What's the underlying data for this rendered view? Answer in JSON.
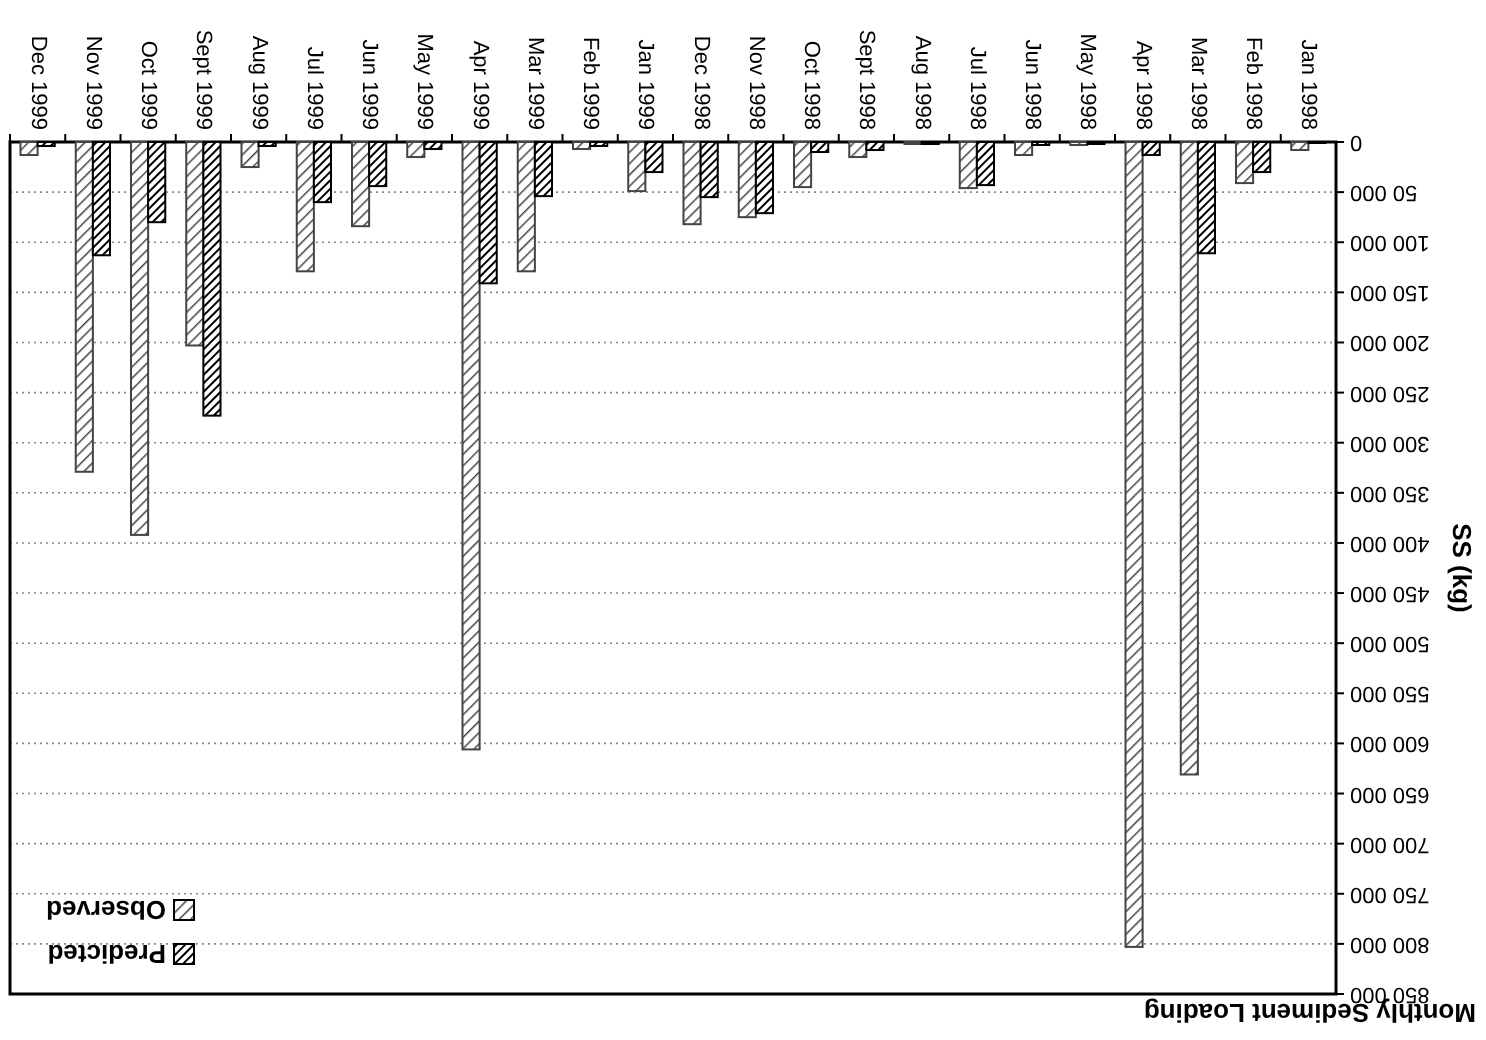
{
  "chart_data": {
    "type": "bar",
    "title": "Monthly Sediment Loading",
    "ylabel": "SS (kg)",
    "categories": [
      "Dec 1999",
      "Nov 1999",
      "Oct 1999",
      "Sept 1999",
      "Aug 1999",
      "Jul 1999",
      "Jun 1999",
      "May 1999",
      "Apr 1999",
      "Mar 1999",
      "Feb 1999",
      "Jan 1999",
      "Dec 1998",
      "Nov 1998",
      "Oct 1998",
      "Sept 1998",
      "Aug 1998",
      "Jul 1998",
      "Jun 1998",
      "May 1998",
      "Apr 1998",
      "Mar 1998",
      "Feb 1998",
      "Jan 1998"
    ],
    "series": [
      {
        "name": "Observed",
        "color": "#444444",
        "values": [
          13000,
          329000,
          392000,
          203000,
          25000,
          129000,
          84000,
          15000,
          606000,
          129000,
          7000,
          49000,
          82000,
          75000,
          45000,
          15000,
          2000,
          46000,
          13000,
          3000,
          803000,
          631000,
          41000,
          8000
        ]
      },
      {
        "name": "Predicted",
        "color": "#000000",
        "values": [
          4000,
          113000,
          80000,
          273000,
          4000,
          60000,
          44000,
          7000,
          141000,
          54000,
          4000,
          30000,
          55000,
          71000,
          10000,
          8000,
          2000,
          43000,
          3000,
          2000,
          13000,
          111000,
          30000,
          1000
        ]
      }
    ],
    "ylim": [
      850000,
      0
    ],
    "yticks": [
      0,
      {
        "value": 50000,
        "label": "50 000"
      },
      {
        "value": 100000,
        "label": "100 000"
      },
      {
        "value": 150000,
        "label": "150 000"
      },
      {
        "value": 200000,
        "label": "200 000"
      },
      {
        "value": 250000,
        "label": "250 000"
      },
      {
        "value": 300000,
        "label": "300 000"
      },
      {
        "value": 350000,
        "label": "350 000"
      },
      {
        "value": 400000,
        "label": "400 000"
      },
      {
        "value": 450000,
        "label": "450 000"
      },
      {
        "value": 500000,
        "label": "500 000"
      },
      {
        "value": 550000,
        "label": "550 000"
      },
      {
        "value": 600000,
        "label": "600 000"
      },
      {
        "value": 650000,
        "label": "650 000"
      },
      {
        "value": 700000,
        "label": "700 000"
      },
      {
        "value": 750000,
        "label": "750 000"
      },
      {
        "value": 800000,
        "label": "800 000"
      },
      {
        "value": 850000,
        "label": "850 000"
      }
    ],
    "grid": "y",
    "legend": "bottom left"
  }
}
